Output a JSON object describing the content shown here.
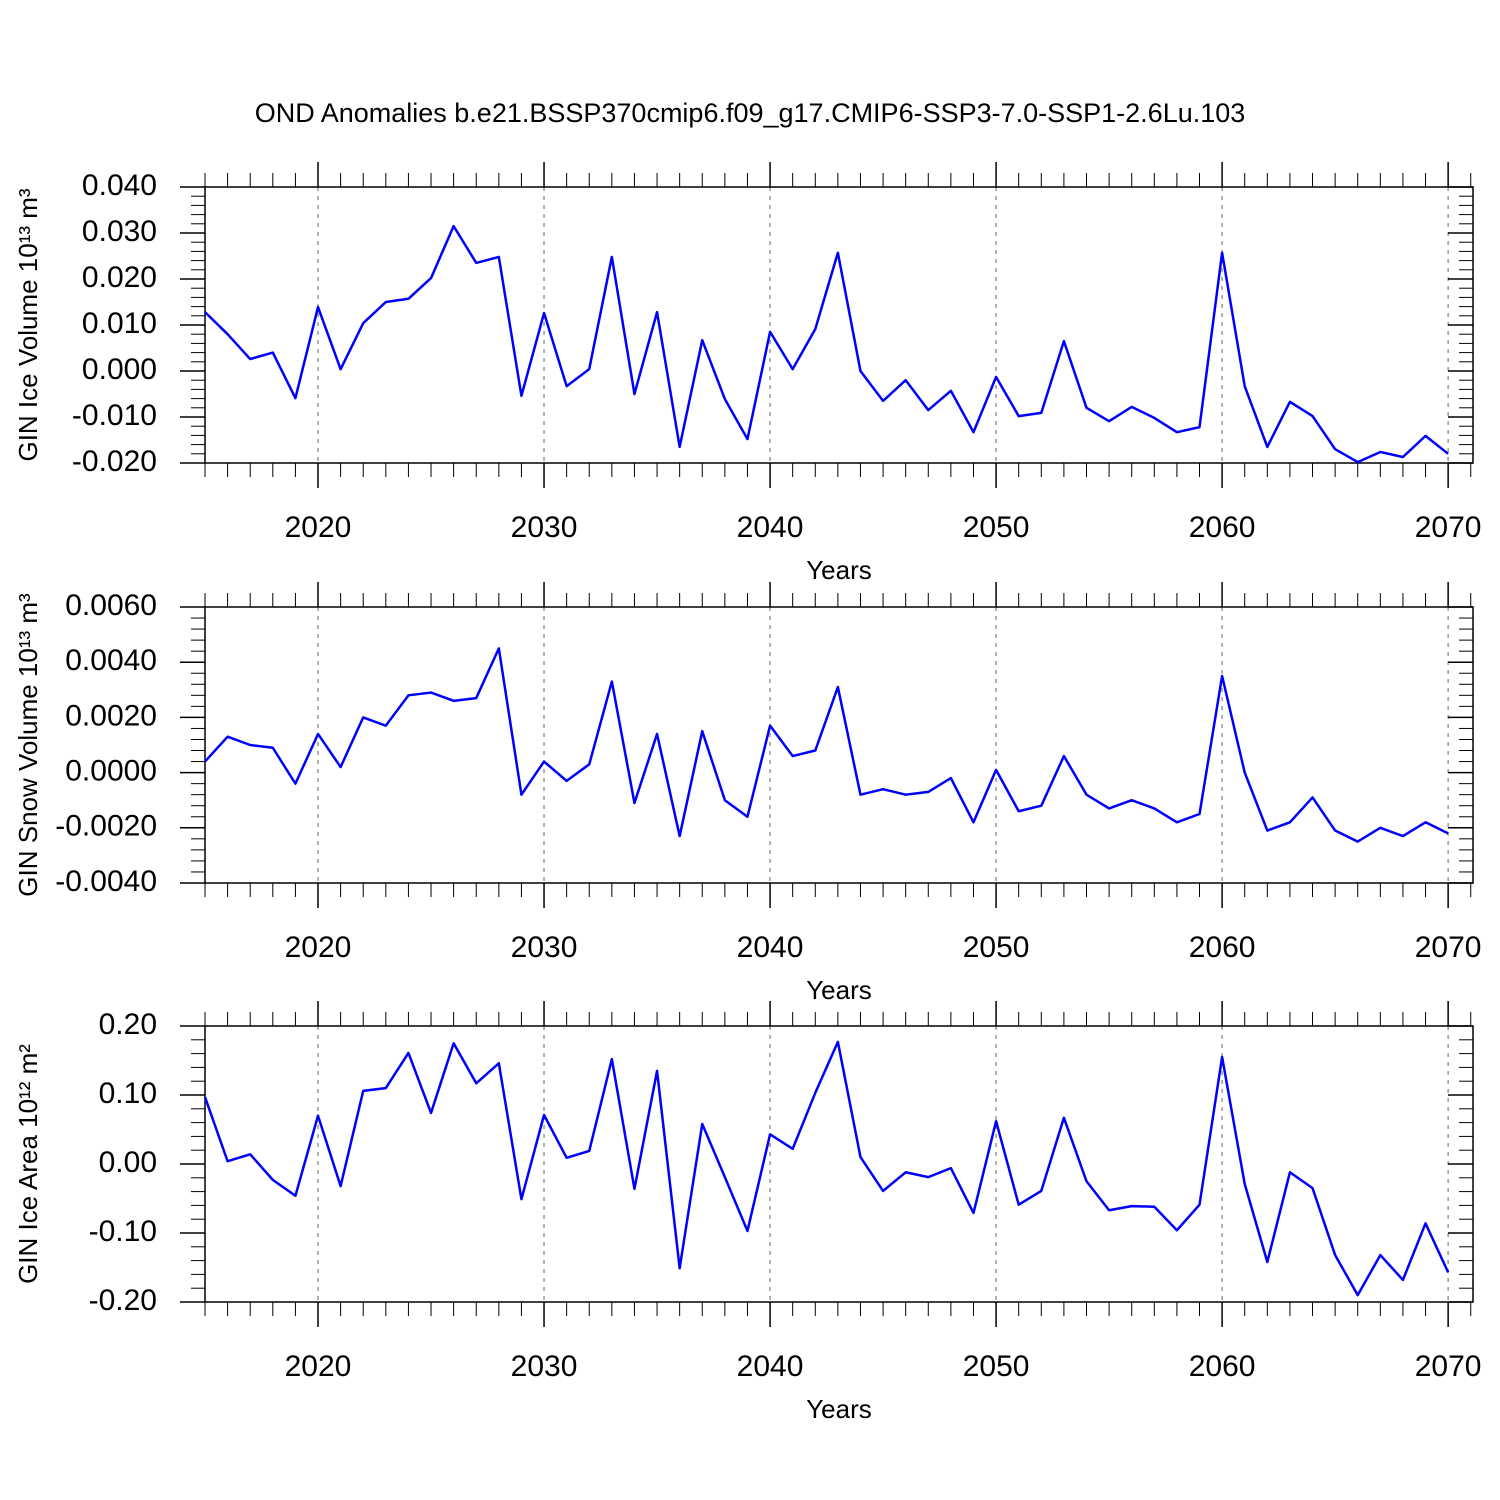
{
  "chart_data": [
    {
      "type": "line",
      "title": "OND Anomalies b.e21.BSSP370cmip6.f09_g17.CMIP6-SSP3-7.0-SSP1-2.6Lu.103",
      "xlabel": "Years",
      "ylabel": "GIN Ice Volume 10¹³ m³",
      "x": [
        2015,
        2016,
        2017,
        2018,
        2019,
        2020,
        2021,
        2022,
        2023,
        2024,
        2025,
        2026,
        2027,
        2028,
        2029,
        2030,
        2031,
        2032,
        2033,
        2034,
        2035,
        2036,
        2037,
        2038,
        2039,
        2040,
        2041,
        2042,
        2043,
        2044,
        2045,
        2046,
        2047,
        2048,
        2049,
        2050,
        2051,
        2052,
        2053,
        2054,
        2055,
        2056,
        2057,
        2058,
        2059,
        2060,
        2061,
        2062,
        2063,
        2064,
        2065,
        2066,
        2067,
        2068,
        2069,
        2070
      ],
      "series": [
        {
          "color": "#0000ff",
          "values": [
            0.0128,
            0.008,
            0.0026,
            0.004,
            -0.0059,
            0.0139,
            0.0004,
            0.0104,
            0.015,
            0.0157,
            0.0202,
            0.0315,
            0.0235,
            0.0248,
            -0.0054,
            0.0126,
            -0.0033,
            0.0004,
            0.0248,
            -0.005,
            0.0128,
            -0.0165,
            0.0067,
            -0.0061,
            -0.0148,
            0.0085,
            0.0004,
            0.0091,
            0.0257,
            0.0,
            -0.0065,
            -0.002,
            -0.0085,
            -0.0043,
            -0.0133,
            -0.0013,
            -0.0098,
            -0.0091,
            0.0065,
            -0.008,
            -0.0109,
            -0.0078,
            -0.0102,
            -0.0133,
            -0.0122,
            0.0257,
            -0.0033,
            -0.0165,
            -0.0067,
            -0.0098,
            -0.017,
            -0.0198,
            -0.0176,
            -0.0187,
            -0.0141,
            -0.018
          ]
        }
      ],
      "xlim": [
        2015,
        2071.1
      ],
      "xticks": [
        2020,
        2030,
        2040,
        2050,
        2060,
        2070
      ],
      "xgrid": true,
      "ylim": [
        -0.02,
        0.04
      ],
      "yticks": [
        {
          "value": -0.02,
          "label": "-0.020"
        },
        {
          "value": -0.01,
          "label": "-0.010"
        },
        {
          "value": 0,
          "label": "0.000"
        },
        {
          "value": 0.01,
          "label": "0.010"
        },
        {
          "value": 0.02,
          "label": "0.020"
        },
        {
          "value": 0.03,
          "label": "0.030"
        },
        {
          "value": 0.04,
          "label": "0.040"
        }
      ]
    },
    {
      "type": "line",
      "xlabel": "Years",
      "ylabel": "GIN Snow Volume 10¹³ m³",
      "x": [
        2015,
        2016,
        2017,
        2018,
        2019,
        2020,
        2021,
        2022,
        2023,
        2024,
        2025,
        2026,
        2027,
        2028,
        2029,
        2030,
        2031,
        2032,
        2033,
        2034,
        2035,
        2036,
        2037,
        2038,
        2039,
        2040,
        2041,
        2042,
        2043,
        2044,
        2045,
        2046,
        2047,
        2048,
        2049,
        2050,
        2051,
        2052,
        2053,
        2054,
        2055,
        2056,
        2057,
        2058,
        2059,
        2060,
        2061,
        2062,
        2063,
        2064,
        2065,
        2066,
        2067,
        2068,
        2069,
        2070
      ],
      "series": [
        {
          "color": "#0000ff",
          "values": [
            0.0004,
            0.0013,
            0.001,
            0.0009,
            -0.0004,
            0.0014,
            0.0002,
            0.002,
            0.0017,
            0.0028,
            0.0029,
            0.0026,
            0.0027,
            0.0045,
            -0.0008,
            0.0004,
            -0.0003,
            0.0003,
            0.0033,
            -0.0011,
            0.0014,
            -0.0023,
            0.0015,
            -0.001,
            -0.0016,
            0.0017,
            0.0006,
            0.0008,
            0.0031,
            -0.0008,
            -0.0006,
            -0.0008,
            -0.0007,
            -0.0002,
            -0.0018,
            0.0001,
            -0.0014,
            -0.0012,
            0.0006,
            -0.0008,
            -0.0013,
            -0.001,
            -0.0013,
            -0.0018,
            -0.0015,
            0.0035,
            0.0,
            -0.0021,
            -0.0018,
            -0.0009,
            -0.0021,
            -0.0025,
            -0.002,
            -0.0023,
            -0.0018,
            -0.0022
          ]
        }
      ],
      "xlim": [
        2015,
        2071.1
      ],
      "xticks": [
        2020,
        2030,
        2040,
        2050,
        2060,
        2070
      ],
      "xgrid": true,
      "ylim": [
        -0.004,
        0.006
      ],
      "yticks": [
        {
          "value": -0.004,
          "label": "-0.0040"
        },
        {
          "value": -0.002,
          "label": "-0.0020"
        },
        {
          "value": 0,
          "label": "0.0000"
        },
        {
          "value": 0.002,
          "label": "0.0020"
        },
        {
          "value": 0.004,
          "label": "0.0040"
        },
        {
          "value": 0.006,
          "label": "0.0060"
        }
      ]
    },
    {
      "type": "line",
      "xlabel": "Years",
      "ylabel": "GIN Ice Area 10¹² m²",
      "x": [
        2015,
        2016,
        2017,
        2018,
        2019,
        2020,
        2021,
        2022,
        2023,
        2024,
        2025,
        2026,
        2027,
        2028,
        2029,
        2030,
        2031,
        2032,
        2033,
        2034,
        2035,
        2036,
        2037,
        2038,
        2039,
        2040,
        2041,
        2042,
        2043,
        2044,
        2045,
        2046,
        2047,
        2048,
        2049,
        2050,
        2051,
        2052,
        2053,
        2054,
        2055,
        2056,
        2057,
        2058,
        2059,
        2060,
        2061,
        2062,
        2063,
        2064,
        2065,
        2066,
        2067,
        2068,
        2069,
        2070
      ],
      "series": [
        {
          "color": "#0000ff",
          "values": [
            0.097,
            0.004,
            0.014,
            -0.023,
            -0.046,
            0.07,
            -0.032,
            0.106,
            0.11,
            0.161,
            0.074,
            0.175,
            0.117,
            0.146,
            -0.051,
            0.071,
            0.009,
            0.019,
            0.152,
            -0.036,
            0.135,
            -0.151,
            0.058,
            -0.019,
            -0.097,
            0.043,
            0.022,
            0.103,
            0.177,
            0.01,
            -0.039,
            -0.012,
            -0.019,
            -0.006,
            -0.071,
            0.062,
            -0.059,
            -0.039,
            0.067,
            -0.025,
            -0.067,
            -0.061,
            -0.062,
            -0.096,
            -0.059,
            0.155,
            -0.029,
            -0.142,
            -0.012,
            -0.035,
            -0.132,
            -0.19,
            -0.132,
            -0.168,
            -0.086,
            -0.157
          ]
        }
      ],
      "xlim": [
        2015,
        2071.1
      ],
      "xticks": [
        2020,
        2030,
        2040,
        2050,
        2060,
        2070
      ],
      "xgrid": true,
      "ylim": [
        -0.2,
        0.2
      ],
      "yticks": [
        {
          "value": -0.2,
          "label": "-0.20"
        },
        {
          "value": -0.1,
          "label": "-0.10"
        },
        {
          "value": 0,
          "label": "0.00"
        },
        {
          "value": 0.1,
          "label": "0.10"
        },
        {
          "value": 0.2,
          "label": "0.20"
        }
      ]
    }
  ]
}
